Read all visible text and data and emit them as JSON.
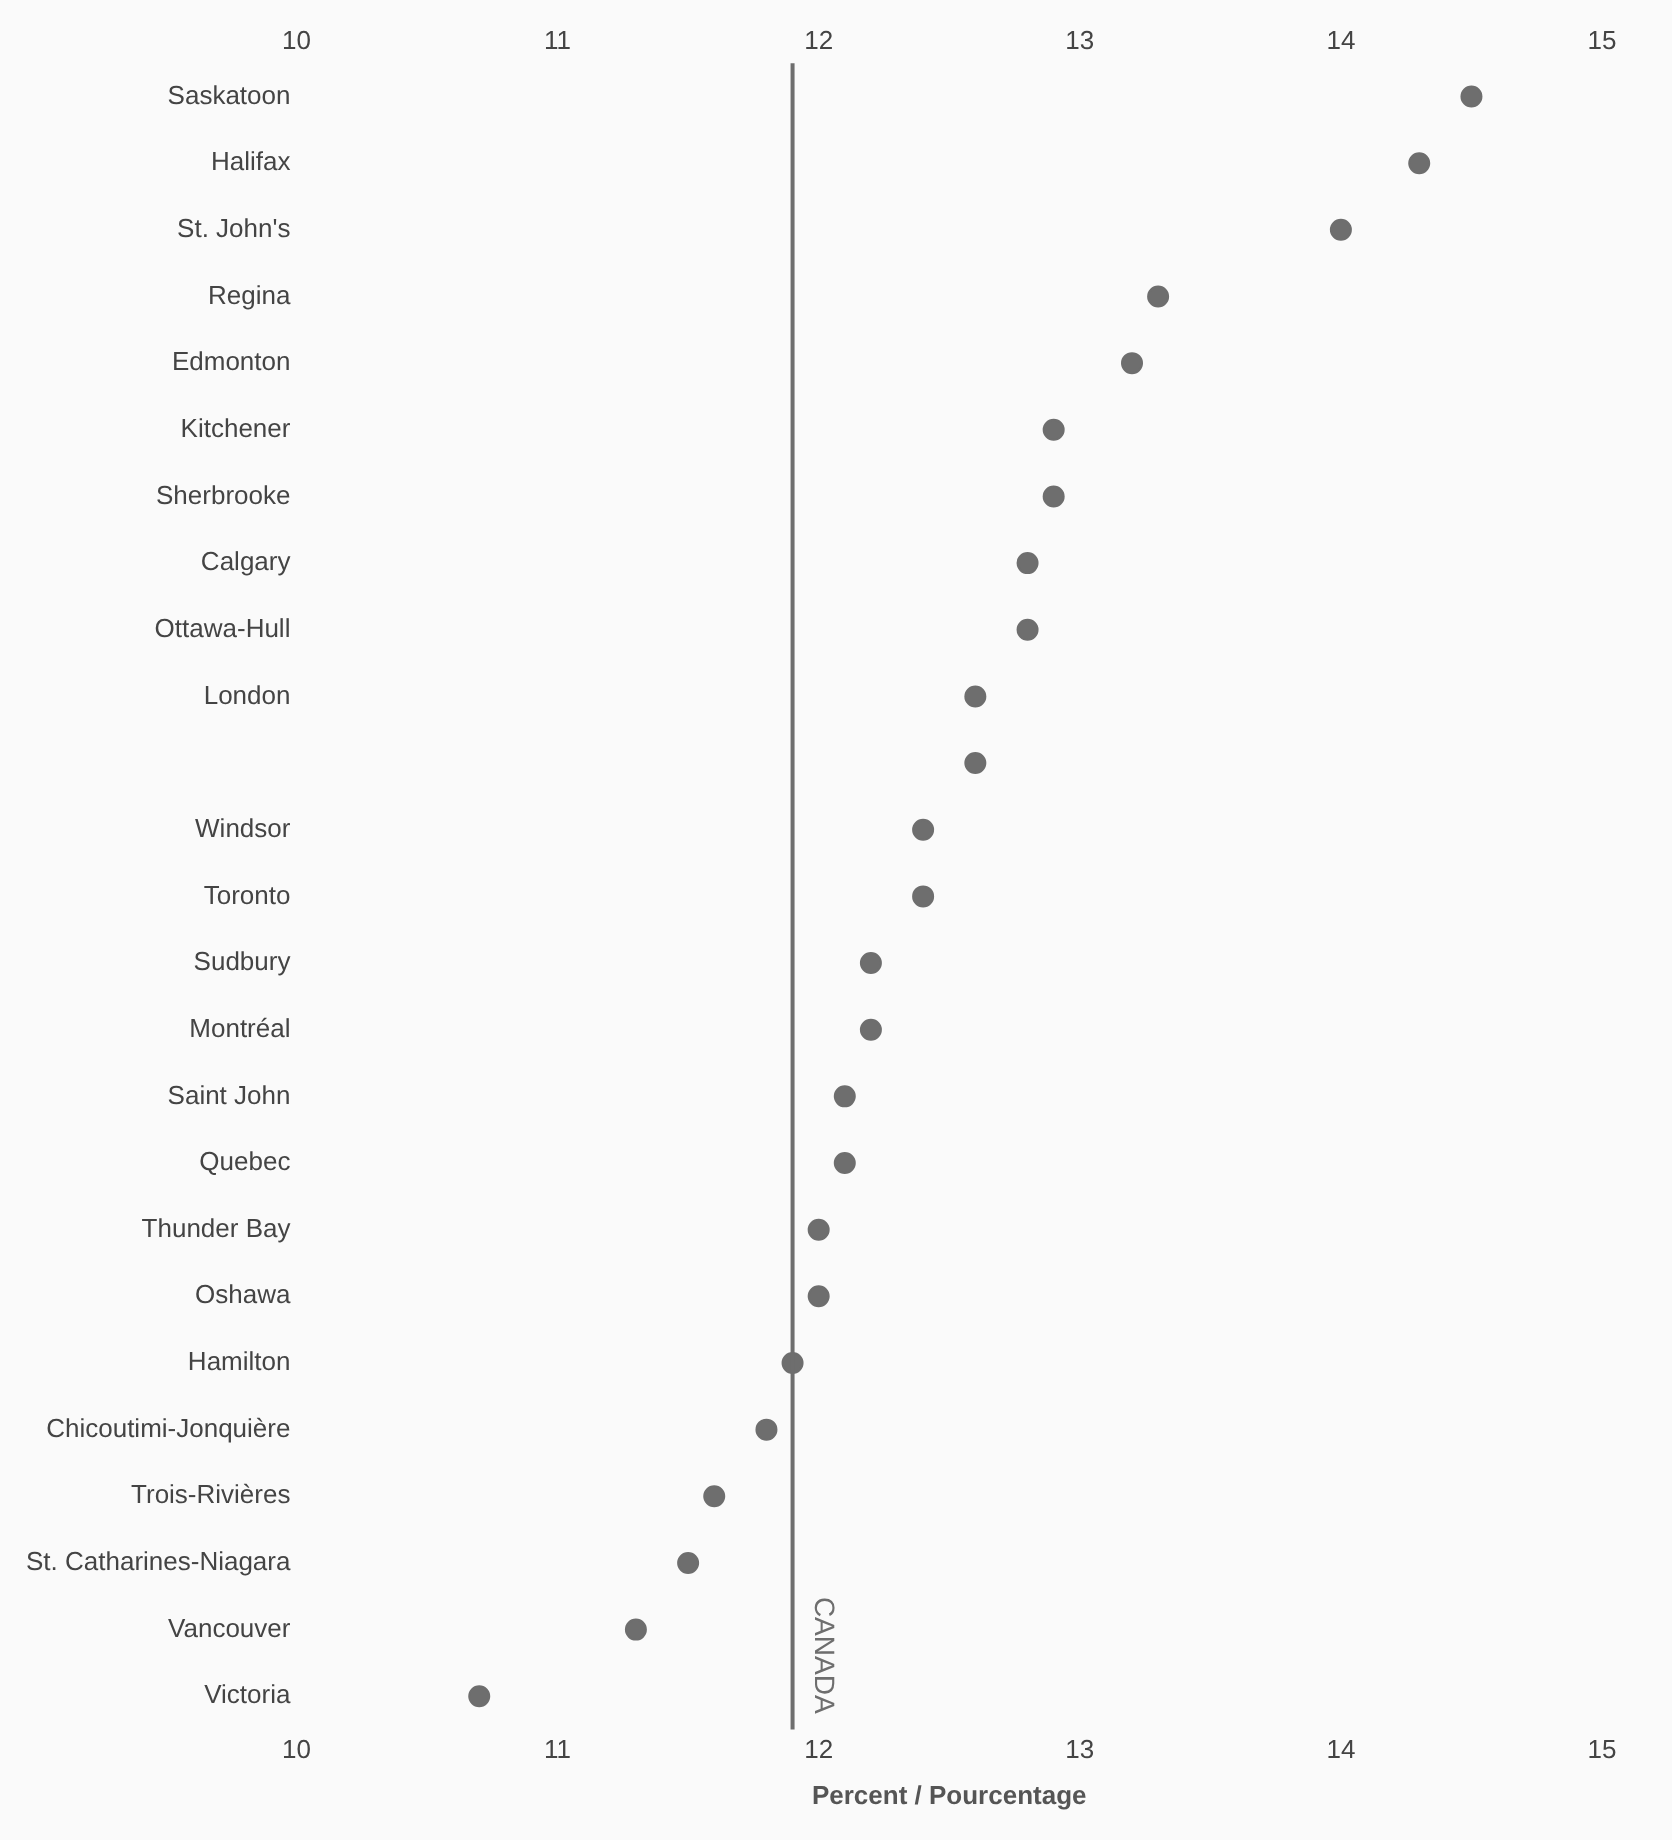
{
  "chart_data": {
    "type": "scatter",
    "xlabel": "Percent / Pourcentage",
    "orientation": "horizontal",
    "categories": [
      "Saskatoon",
      "Halifax",
      "St. John's",
      "Regina",
      "Edmonton",
      "Kitchener",
      "Sherbrooke",
      "Calgary",
      "Ottawa-Hull",
      "London",
      null,
      "Windsor",
      "Toronto",
      "Sudbury",
      "Montréal",
      "Saint John",
      "Quebec",
      "Thunder Bay",
      "Oshawa",
      "Hamilton",
      "Chicoutimi-Jonquière",
      "Trois-Rivières",
      "St. Catharines-Niagara",
      "Vancouver",
      "Victoria"
    ],
    "series": [
      {
        "color": "#6e6e6e",
        "values": [
          14.5,
          14.3,
          14.0,
          13.3,
          13.2,
          12.9,
          12.9,
          12.8,
          12.8,
          12.6,
          12.6,
          12.4,
          12.4,
          12.2,
          12.2,
          12.1,
          12.1,
          12.0,
          12.0,
          11.9,
          11.8,
          11.6,
          11.5,
          11.3,
          10.7
        ]
      }
    ],
    "xlim": [
      10,
      15
    ],
    "xticks": [
      10,
      11,
      12,
      13,
      14,
      15
    ],
    "x2lim": [
      10,
      15
    ],
    "x2ticks": [
      10,
      11,
      12,
      13,
      14,
      15
    ],
    "ref_lines": [
      {
        "axis": "x",
        "value": 11.9,
        "label": "CANADA",
        "color": "#6e6e6e"
      }
    ],
    "grid": false,
    "legend": false,
    "marker": "circle"
  }
}
